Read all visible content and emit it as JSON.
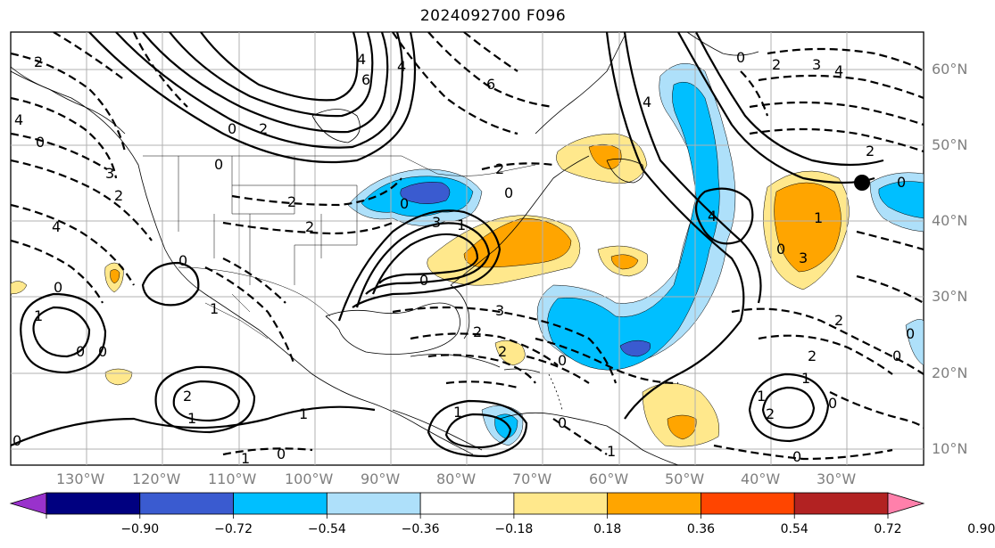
{
  "title": "2024092700 F096",
  "lon_labels": [
    "130°W",
    "120°W",
    "110°W",
    "100°W",
    "90°W",
    "80°W",
    "70°W",
    "60°W",
    "50°W",
    "40°W",
    "30°W"
  ],
  "lat_labels": [
    "60°N",
    "50°N",
    "40°N",
    "30°N",
    "20°N",
    "10°N"
  ],
  "colorbar": {
    "ticks": [
      "−0.90",
      "−0.72",
      "−0.54",
      "−0.36",
      "−0.18",
      "0.18",
      "0.36",
      "0.54",
      "0.72",
      "0.90"
    ],
    "colors": [
      "#9932cc",
      "#000080",
      "#3a5bd0",
      "#00bfff",
      "#aee0fa",
      "#ffffff",
      "#ffe88c",
      "#ffa500",
      "#ff4500",
      "#b22222",
      "#ff80ab"
    ]
  },
  "contour_labels": {
    "zero": "0",
    "minus1": "1",
    "minus2": "2",
    "minus3": "3",
    "minus4": "4",
    "minus6": "6",
    "pos1": "1",
    "pos2": "2",
    "pos3": "3",
    "pos4": "4"
  },
  "colors": {
    "lon_lat_text": "#7f7f7f",
    "grid": "#b0b0b0"
  }
}
